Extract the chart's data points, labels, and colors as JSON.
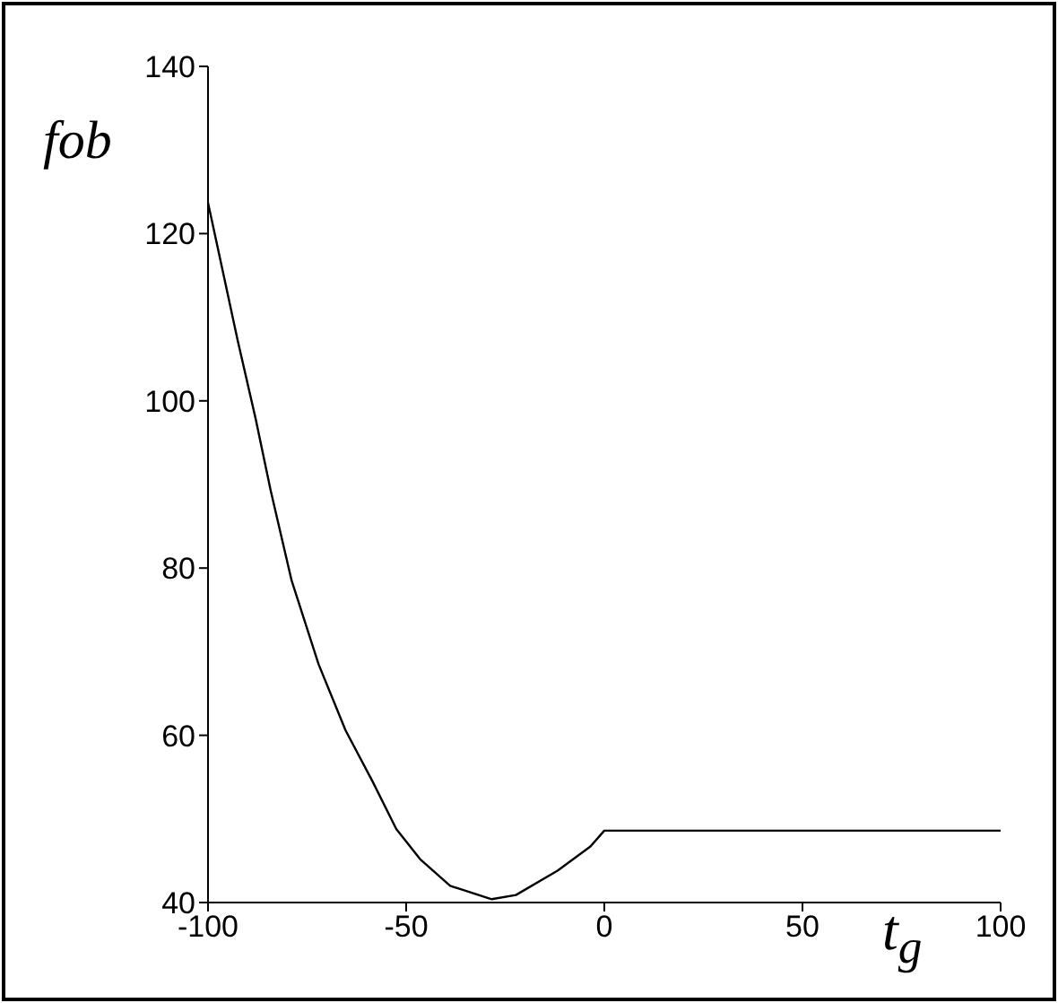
{
  "chart_data": {
    "type": "line",
    "xlabel": "t$_{g}$",
    "ylabel": "fob",
    "x": [
      -100,
      -92.5,
      -88,
      -84.2,
      -78.9,
      -72.1,
      -65.3,
      -58.5,
      -52.5,
      -46.5,
      -38.9,
      -28.4,
      -22.3,
      -11.8,
      -3.5,
      0,
      100
    ],
    "series": [
      {
        "color": "#000000",
        "values": [
          123.7,
          107.2,
          97.9,
          89.3,
          78.5,
          68.5,
          60.6,
          54.5,
          48.8,
          45.2,
          42.0,
          40.4,
          40.9,
          43.8,
          46.7,
          48.6,
          48.6
        ]
      }
    ],
    "xlim": [
      -100,
      100
    ],
    "xticks": [
      -100,
      -50,
      0,
      50,
      100
    ],
    "ylim": [
      40,
      140
    ],
    "yticks": [
      40,
      60,
      80,
      100,
      120,
      140
    ],
    "grid": false,
    "legend": false,
    "marker": "none",
    "line_style": "solid"
  }
}
